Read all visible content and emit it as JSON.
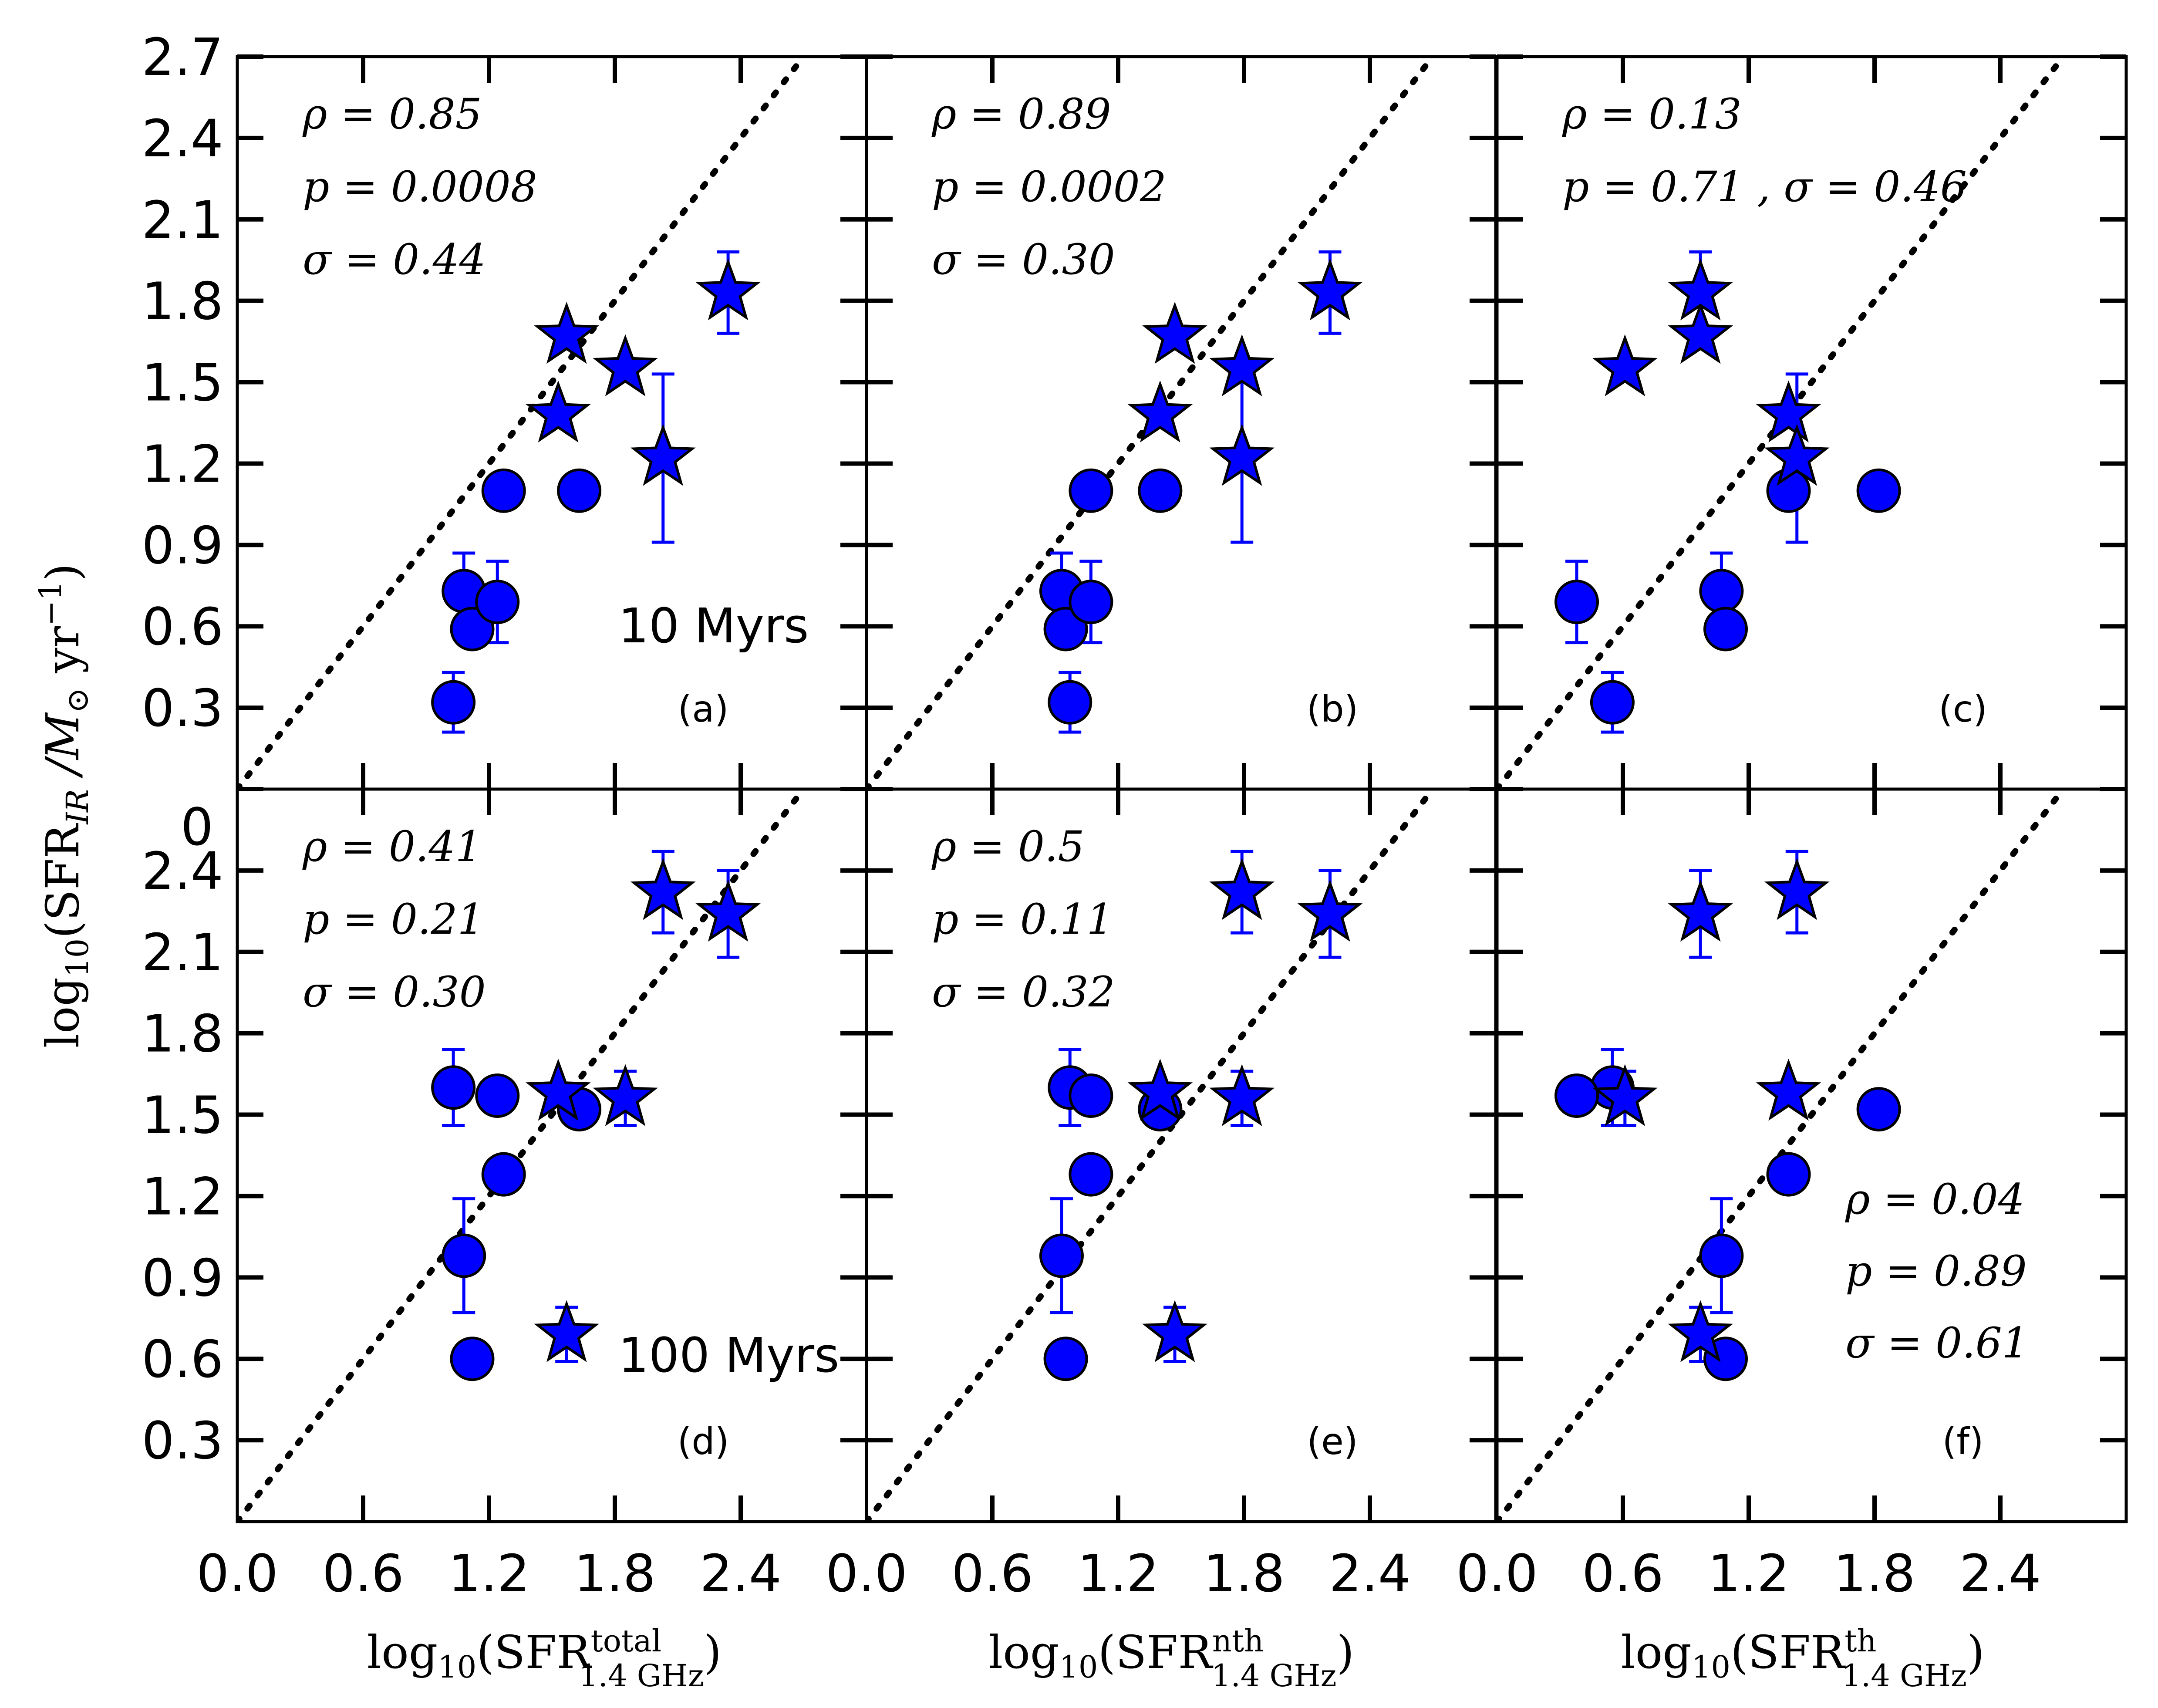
{
  "figure": {
    "ylabel_main": "log",
    "ylabel_sub": "10",
    "ylabel_rest": "(SFR",
    "ylabel_sub2": "IR",
    "ylabel_unit": " /M",
    "ylabel_unit_sub": "⊙",
    "ylabel_unit_tail": " yr",
    "ylabel_unit_sup": "−1",
    "ylabel_close": ")",
    "xlabels": [
      {
        "pre": "log",
        "sub10": "10",
        "mid": "(SFR",
        "sup": "total",
        "sub": "1.4 GHz",
        "post": ")"
      },
      {
        "pre": "log",
        "sub10": "10",
        "mid": "(SFR",
        "sup": "nth",
        "sub": "1.4 GHz",
        "post": ")"
      },
      {
        "pre": "log",
        "sub10": "10",
        "mid": "(SFR",
        "sup": "th",
        "sub": "1.4 GHz",
        "post": ")"
      }
    ],
    "epoch_labels": {
      "top": "10 Myrs",
      "bottom": "100 Myrs"
    },
    "top_row_extra_tick": "0",
    "colors": {
      "marker": "#0000ff",
      "errorbar": "#0000ff",
      "one_to_one": "#000000"
    }
  },
  "chart_data": [
    {
      "panel": "(a)",
      "type": "scatter",
      "row": 0,
      "col": 0,
      "xlim": [
        0.0,
        3.0
      ],
      "ylim": [
        0.0,
        2.7
      ],
      "xticks": [
        "0.0",
        "0.6",
        "1.2",
        "1.8",
        "2.4"
      ],
      "yticks": [
        "0.3",
        "0.6",
        "0.9",
        "1.2",
        "1.5",
        "1.8",
        "2.1",
        "2.4",
        "2.7"
      ],
      "stats": [
        "ρ = 0.85",
        "p = 0.0008",
        "σ = 0.44"
      ],
      "circles": [
        {
          "x": 1.03,
          "y": 0.32,
          "err": 0.11
        },
        {
          "x": 1.08,
          "y": 0.73,
          "err": 0.14
        },
        {
          "x": 1.12,
          "y": 0.59
        },
        {
          "x": 1.24,
          "y": 0.69,
          "err": 0.15
        },
        {
          "x": 1.27,
          "y": 1.1
        },
        {
          "x": 1.63,
          "y": 1.1
        }
      ],
      "stars": [
        {
          "x": 1.57,
          "y": 1.67
        },
        {
          "x": 1.53,
          "y": 1.38
        },
        {
          "x": 1.85,
          "y": 1.55
        },
        {
          "x": 2.03,
          "y": 1.22,
          "err": 0.31
        },
        {
          "x": 2.34,
          "y": 1.83,
          "err": 0.15
        }
      ]
    },
    {
      "panel": "(b)",
      "type": "scatter",
      "row": 0,
      "col": 1,
      "xlim": [
        0.0,
        3.0
      ],
      "ylim": [
        0.0,
        2.7
      ],
      "xticks": [
        "0.0",
        "0.6",
        "1.2",
        "1.8",
        "2.4"
      ],
      "stats": [
        "ρ = 0.89",
        "p = 0.0002",
        "σ = 0.30"
      ],
      "circles": [
        {
          "x": 0.97,
          "y": 0.32,
          "err": 0.11
        },
        {
          "x": 0.93,
          "y": 0.73,
          "err": 0.14
        },
        {
          "x": 0.95,
          "y": 0.59
        },
        {
          "x": 1.07,
          "y": 0.69,
          "err": 0.15
        },
        {
          "x": 1.07,
          "y": 1.1
        },
        {
          "x": 1.4,
          "y": 1.1
        }
      ],
      "stars": [
        {
          "x": 1.47,
          "y": 1.67
        },
        {
          "x": 1.4,
          "y": 1.38
        },
        {
          "x": 1.79,
          "y": 1.55
        },
        {
          "x": 1.79,
          "y": 1.22,
          "err": 0.31
        },
        {
          "x": 2.21,
          "y": 1.83,
          "err": 0.15
        }
      ]
    },
    {
      "panel": "(c)",
      "type": "scatter",
      "row": 0,
      "col": 2,
      "xlim": [
        0.0,
        3.0
      ],
      "ylim": [
        0.0,
        2.7
      ],
      "xticks": [
        "0.0",
        "0.6",
        "1.2",
        "1.8",
        "2.4"
      ],
      "stats": [
        "ρ = 0.13",
        "p = 0.71 , σ = 0.46"
      ],
      "circles": [
        {
          "x": 0.55,
          "y": 0.32,
          "err": 0.11
        },
        {
          "x": 1.07,
          "y": 0.73,
          "err": 0.14
        },
        {
          "x": 1.09,
          "y": 0.59
        },
        {
          "x": 0.38,
          "y": 0.69,
          "err": 0.15
        },
        {
          "x": 1.39,
          "y": 1.1
        },
        {
          "x": 1.82,
          "y": 1.1
        }
      ],
      "stars": [
        {
          "x": 0.97,
          "y": 1.67
        },
        {
          "x": 1.39,
          "y": 1.38
        },
        {
          "x": 0.61,
          "y": 1.55
        },
        {
          "x": 1.43,
          "y": 1.22,
          "err": 0.31
        },
        {
          "x": 0.97,
          "y": 1.83,
          "err": 0.15
        }
      ]
    },
    {
      "panel": "(d)",
      "type": "scatter",
      "row": 1,
      "col": 0,
      "xlim": [
        0.0,
        3.0
      ],
      "ylim": [
        0.0,
        2.7
      ],
      "xticks": [
        "0.0",
        "0.6",
        "1.2",
        "1.8",
        "2.4"
      ],
      "yticks": [
        "0.3",
        "0.6",
        "0.9",
        "1.2",
        "1.5",
        "1.8",
        "2.1",
        "2.4"
      ],
      "stats": [
        "ρ = 0.41",
        "p = 0.21",
        "σ = 0.30"
      ],
      "circles": [
        {
          "x": 1.03,
          "y": 1.6,
          "err": 0.14
        },
        {
          "x": 1.08,
          "y": 0.98,
          "err": 0.21
        },
        {
          "x": 1.12,
          "y": 0.6
        },
        {
          "x": 1.24,
          "y": 1.57
        },
        {
          "x": 1.27,
          "y": 1.28
        },
        {
          "x": 1.63,
          "y": 1.52
        }
      ],
      "stars": [
        {
          "x": 1.57,
          "y": 0.69,
          "err": 0.1
        },
        {
          "x": 1.53,
          "y": 1.58
        },
        {
          "x": 1.85,
          "y": 1.56,
          "err": 0.1
        },
        {
          "x": 2.03,
          "y": 2.32,
          "err": 0.15
        },
        {
          "x": 2.34,
          "y": 2.24,
          "err": 0.16
        }
      ]
    },
    {
      "panel": "(e)",
      "type": "scatter",
      "row": 1,
      "col": 1,
      "xlim": [
        0.0,
        3.0
      ],
      "ylim": [
        0.0,
        2.7
      ],
      "xticks": [
        "0.0",
        "0.6",
        "1.2",
        "1.8",
        "2.4"
      ],
      "stats": [
        "ρ = 0.5",
        "p = 0.11",
        "σ = 0.32"
      ],
      "circles": [
        {
          "x": 0.97,
          "y": 1.6,
          "err": 0.14
        },
        {
          "x": 0.93,
          "y": 0.98,
          "err": 0.21
        },
        {
          "x": 0.95,
          "y": 0.6
        },
        {
          "x": 1.07,
          "y": 1.57
        },
        {
          "x": 1.07,
          "y": 1.28
        },
        {
          "x": 1.4,
          "y": 1.52
        }
      ],
      "stars": [
        {
          "x": 1.47,
          "y": 0.69,
          "err": 0.1
        },
        {
          "x": 1.4,
          "y": 1.58
        },
        {
          "x": 1.79,
          "y": 1.56,
          "err": 0.1
        },
        {
          "x": 1.79,
          "y": 2.32,
          "err": 0.15
        },
        {
          "x": 2.21,
          "y": 2.24,
          "err": 0.16
        }
      ]
    },
    {
      "panel": "(f)",
      "type": "scatter",
      "row": 1,
      "col": 2,
      "xlim": [
        0.0,
        3.0
      ],
      "ylim": [
        0.0,
        2.7
      ],
      "xticks": [
        "0.0",
        "0.6",
        "1.2",
        "1.8",
        "2.4"
      ],
      "stats": [
        "ρ = 0.04",
        "p = 0.89",
        "σ = 0.61"
      ],
      "stats_position": "bottom-right",
      "circles": [
        {
          "x": 0.55,
          "y": 1.6,
          "err": 0.14
        },
        {
          "x": 1.07,
          "y": 0.98,
          "err": 0.21
        },
        {
          "x": 1.09,
          "y": 0.6
        },
        {
          "x": 0.38,
          "y": 1.57
        },
        {
          "x": 1.39,
          "y": 1.28
        },
        {
          "x": 1.82,
          "y": 1.52
        }
      ],
      "stars": [
        {
          "x": 0.97,
          "y": 0.69,
          "err": 0.1
        },
        {
          "x": 1.39,
          "y": 1.58
        },
        {
          "x": 0.61,
          "y": 1.56,
          "err": 0.1
        },
        {
          "x": 1.43,
          "y": 2.32,
          "err": 0.15
        },
        {
          "x": 0.97,
          "y": 2.24,
          "err": 0.16
        }
      ]
    }
  ]
}
